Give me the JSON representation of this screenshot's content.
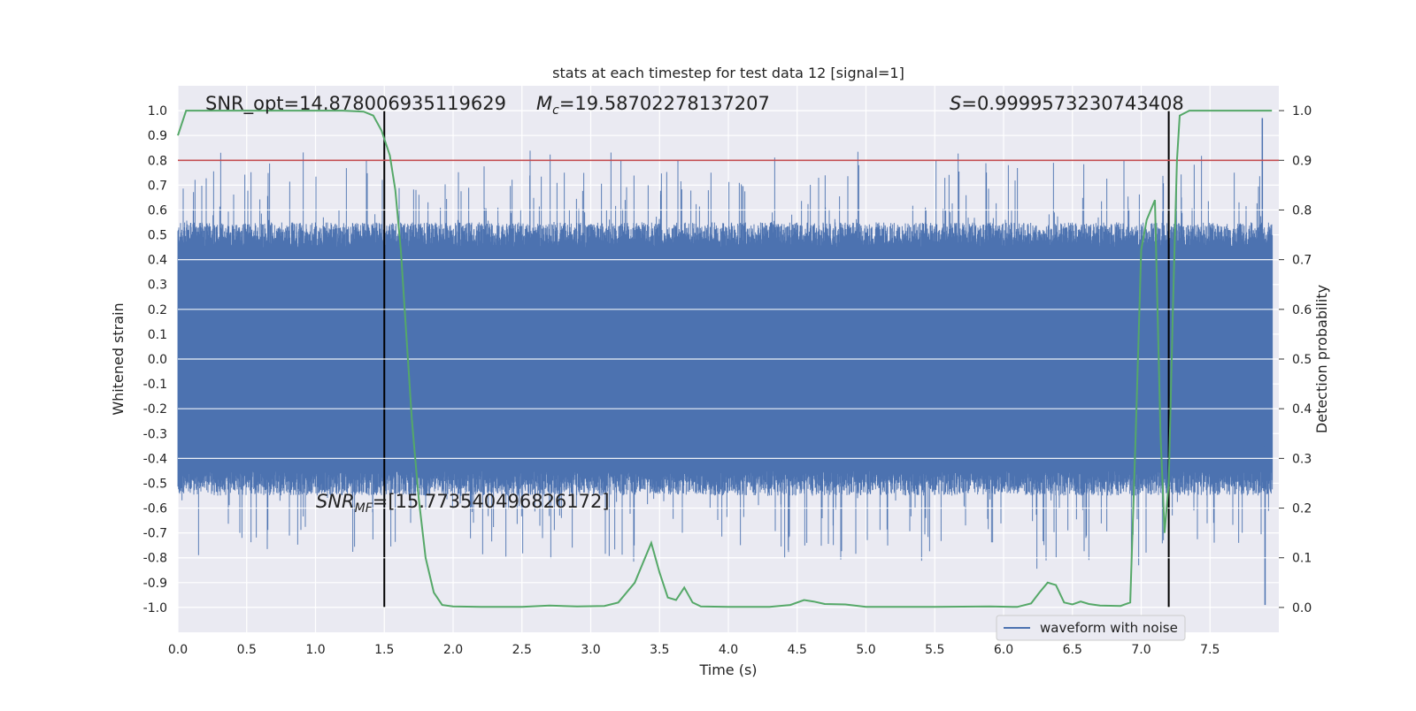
{
  "chart_data": {
    "type": "line",
    "title": "stats at each timestep for test data 12 [signal=1]",
    "xlabel": "Time (s)",
    "ylabel": "Whitened strain",
    "ylabel_right": "Detection probability",
    "xlim": [
      0.0,
      8.0
    ],
    "ylim": [
      -1.1,
      1.1
    ],
    "ylim_right": [
      -0.05,
      1.05
    ],
    "x_ticks": [
      "0.0",
      "0.5",
      "1.0",
      "1.5",
      "2.0",
      "2.5",
      "3.0",
      "3.5",
      "4.0",
      "4.5",
      "5.0",
      "5.5",
      "6.0",
      "6.5",
      "7.0",
      "7.5"
    ],
    "y_ticks": [
      "1.0",
      "0.9",
      "0.8",
      "0.7",
      "0.6",
      "0.5",
      "0.4",
      "0.3",
      "0.2",
      "0.1",
      "0.0",
      "-0.1",
      "-0.2",
      "-0.3",
      "-0.4",
      "-0.5",
      "-0.6",
      "-0.7",
      "-0.8",
      "-0.9",
      "-1.0"
    ],
    "y_ticks_right": [
      "1.0",
      "0.9",
      "0.8",
      "0.7",
      "0.6",
      "0.5",
      "0.4",
      "0.3",
      "0.2",
      "0.1",
      "0.0"
    ],
    "grid": true,
    "legend": "bottom-right",
    "annotations": {
      "snr_opt": "SNR_opt=14.878006935119629",
      "mc_symbol": "M",
      "mc_subscript": "c",
      "mc_value": "=19.58702278137207",
      "s_symbol": "S",
      "s_value": "=0.9999573230743408",
      "snr_mf_symbol": "SNR",
      "snr_mf_subscript": "MF",
      "snr_mf_value": "=[15.773540496826172]"
    },
    "series": [
      {
        "name": "waveform with noise",
        "color": "#4c72b0",
        "axis": "left",
        "note": "dense noisy strain signal sampled over 0–8 s",
        "x_range": [
          0.0,
          7.95
        ],
        "typical_peak_envelope": [
          0.45,
          0.55
        ],
        "y_max": 0.97,
        "y_min": -0.99
      },
      {
        "name": "detection probability",
        "color": "#55a868",
        "axis": "right",
        "x": [
          0.0,
          0.06,
          0.3,
          0.6,
          0.9,
          1.2,
          1.35,
          1.42,
          1.48,
          1.54,
          1.58,
          1.62,
          1.66,
          1.7,
          1.75,
          1.8,
          1.86,
          1.92,
          2.0,
          2.2,
          2.5,
          2.7,
          2.9,
          3.1,
          3.2,
          3.26,
          3.32,
          3.38,
          3.44,
          3.5,
          3.56,
          3.62,
          3.68,
          3.74,
          3.8,
          4.0,
          4.3,
          4.45,
          4.55,
          4.62,
          4.7,
          4.85,
          5.0,
          5.5,
          5.9,
          6.1,
          6.2,
          6.26,
          6.32,
          6.38,
          6.44,
          6.5,
          6.56,
          6.62,
          6.7,
          6.85,
          6.92,
          6.96,
          7.0,
          7.04,
          7.1,
          7.14,
          7.17,
          7.2,
          7.23,
          7.26,
          7.28,
          7.35,
          7.5,
          7.6,
          7.95
        ],
        "y": [
          0.95,
          1.0,
          1.0,
          1.0,
          1.0,
          1.0,
          0.998,
          0.99,
          0.96,
          0.91,
          0.84,
          0.72,
          0.55,
          0.38,
          0.22,
          0.1,
          0.03,
          0.005,
          0.002,
          0.001,
          0.001,
          0.004,
          0.002,
          0.003,
          0.01,
          0.03,
          0.05,
          0.09,
          0.13,
          0.07,
          0.02,
          0.015,
          0.04,
          0.01,
          0.002,
          0.001,
          0.001,
          0.005,
          0.015,
          0.012,
          0.007,
          0.006,
          0.001,
          0.001,
          0.002,
          0.001,
          0.008,
          0.03,
          0.05,
          0.045,
          0.01,
          0.006,
          0.012,
          0.007,
          0.004,
          0.003,
          0.01,
          0.35,
          0.72,
          0.78,
          0.82,
          0.35,
          0.15,
          0.25,
          0.6,
          0.9,
          0.99,
          1.0,
          1.0,
          1.0,
          1.0
        ]
      }
    ],
    "threshold": {
      "axis": "right",
      "value": 0.9,
      "color": "#c44e52"
    },
    "vertical_markers": [
      1.5,
      7.2
    ]
  }
}
